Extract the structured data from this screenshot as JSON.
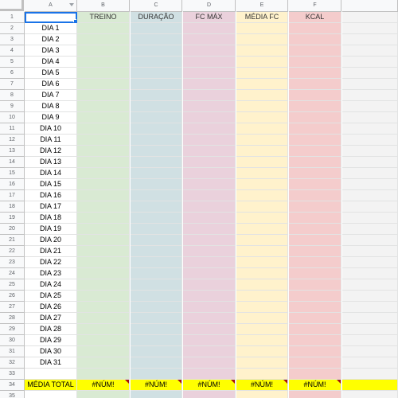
{
  "columns": [
    {
      "letter": "A",
      "color": "#ffffff"
    },
    {
      "letter": "B",
      "color": "#d9ead3"
    },
    {
      "letter": "C",
      "color": "#d0e0e3"
    },
    {
      "letter": "D",
      "color": "#ead1dc"
    },
    {
      "letter": "E",
      "color": "#fff2cc"
    },
    {
      "letter": "F",
      "color": "#f4cccc"
    },
    {
      "letter": "",
      "color": "#f3f3f3"
    }
  ],
  "headers": [
    "",
    "TREINO",
    "DURAÇÃO",
    "FC MÁX",
    "MÉDIA FC",
    "KCAL",
    ""
  ],
  "days": [
    "DIA 1",
    "DIA 2",
    "DIA 3",
    "DIA 4",
    "DIA 5",
    "DIA 6",
    "DIA 7",
    "DIA 8",
    "DIA 9",
    "DIA 10",
    "DIA 11",
    "DIA 12",
    "DIA 13",
    "DIA 14",
    "DIA 15",
    "DIA 16",
    "DIA 17",
    "DIA 18",
    "DIA 19",
    "DIA 20",
    "DIA 21",
    "DIA 22",
    "DIA 23",
    "DIA 24",
    "DIA 25",
    "DIA 26",
    "DIA 27",
    "DIA 28",
    "DIA 29",
    "DIA 30",
    "DIA 31"
  ],
  "row_numbers": [
    "1",
    "2",
    "3",
    "4",
    "5",
    "6",
    "7",
    "8",
    "9",
    "10",
    "11",
    "12",
    "13",
    "14",
    "15",
    "16",
    "17",
    "18",
    "19",
    "20",
    "21",
    "22",
    "23",
    "24",
    "25",
    "26",
    "27",
    "28",
    "29",
    "30",
    "31",
    "32",
    "33",
    "34",
    "35"
  ],
  "total_row": {
    "label": "MÉDIA TOTAL",
    "values": [
      "#NÚM!",
      "#NÚM!",
      "#NÚM!",
      "#NÚM!",
      "#NÚM!"
    ],
    "highlight": "#ffff00"
  },
  "selected_cell": "A1"
}
